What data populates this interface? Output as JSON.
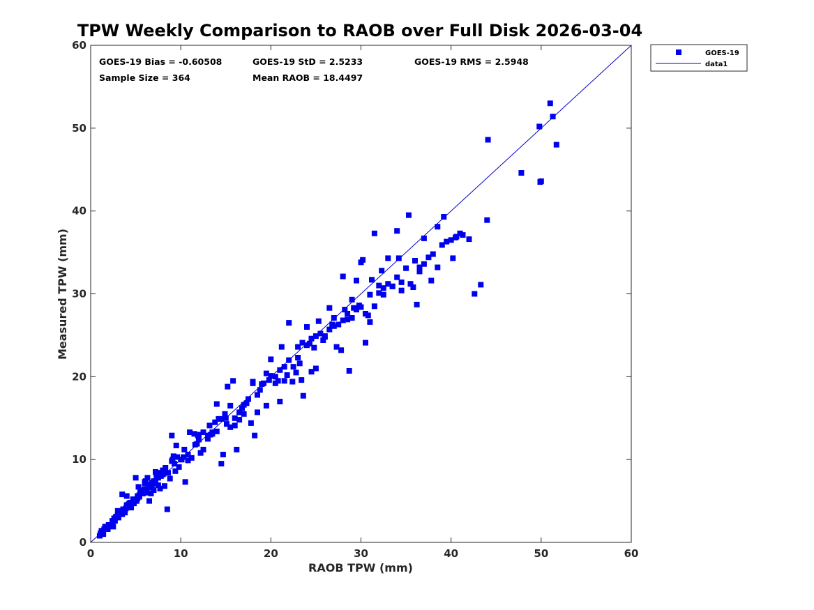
{
  "chart_data": {
    "type": "scatter",
    "title": "TPW Weekly Comparison to RAOB over Full Disk 2026-03-04",
    "xlabel": "RAOB TPW (mm)",
    "ylabel": "Measured TPW (mm)",
    "xlim": [
      0,
      60
    ],
    "ylim": [
      0,
      60
    ],
    "xticks": [
      0,
      10,
      20,
      30,
      40,
      50,
      60
    ],
    "yticks": [
      0,
      10,
      20,
      30,
      40,
      50,
      60
    ],
    "grid": false,
    "legend_position": "outside-top-right",
    "colors": {
      "marker": "#0000ee",
      "line": "#0000cc"
    },
    "stats": {
      "bias": "GOES-19 Bias = -0.60508",
      "std": "GOES-19 StD = 2.5233",
      "rms": "GOES-19 RMS = 2.5948",
      "sample": "Sample Size = 364",
      "mean": "Mean RAOB = 18.4497"
    },
    "series": [
      {
        "name": "GOES-19",
        "kind": "scatter",
        "marker": "square",
        "x": [
          1.0,
          1.1,
          1.2,
          1.3,
          1.4,
          1.5,
          1.6,
          1.8,
          2.0,
          2.2,
          2.4,
          2.6,
          2.8,
          3.0,
          3.2,
          3.4,
          3.6,
          3.8,
          4.0,
          4.2,
          4.4,
          4.6,
          4.8,
          5.0,
          5.2,
          5.4,
          5.6,
          5.8,
          6.0,
          6.2,
          6.4,
          6.6,
          6.8,
          7.0,
          7.2,
          7.5,
          7.8,
          8.0,
          8.3,
          8.6,
          9.0,
          9.3,
          9.6,
          10.0,
          10.4,
          10.8,
          11.2,
          11.6,
          12.0,
          12.5,
          13.0,
          13.5,
          14.0,
          14.5,
          15.0,
          15.5,
          16.0,
          16.5,
          17.0,
          17.5,
          18.0,
          18.5,
          19.0,
          19.5,
          20.0,
          20.5,
          21.0,
          21.5,
          22.0,
          22.5,
          23.0,
          23.5,
          24.0,
          24.5,
          25.0,
          25.5,
          26.0,
          26.5,
          27.0,
          27.5,
          28.0,
          28.5,
          29.0,
          29.5,
          30.0,
          30.5,
          31.0,
          31.5,
          32.0,
          32.5,
          33.0,
          33.5,
          34.0,
          34.5,
          35.0,
          35.5,
          36.0,
          36.5,
          37.0,
          37.5,
          38.0,
          38.5,
          39.0,
          39.5,
          40.0,
          40.6,
          41.3,
          42.0,
          43.3,
          44.0,
          47.8,
          49.8,
          51.0,
          51.3,
          51.7,
          3.5,
          4.0,
          6.5,
          8.5,
          9.0,
          11.8,
          13.5,
          14.5,
          15.2,
          18.2,
          19.0,
          21.0,
          23.6,
          27.3,
          28.7,
          30.5,
          31.5,
          34.0,
          35.3,
          36.2,
          39.2,
          42.6,
          44.1,
          49.9,
          50.0,
          5.0,
          6.0,
          7.2,
          10.5,
          12.0,
          14.7,
          17.0,
          20.0,
          22.0,
          24.5,
          26.0,
          28.0,
          29.0,
          30.0,
          32.5,
          33.0,
          37.0,
          38.5,
          40.5,
          41.0,
          2.5,
          3.0,
          4.5,
          5.5,
          6.0,
          8.0,
          9.5,
          11.0,
          13.0,
          16.0,
          17.8,
          19.5,
          21.5,
          23.0,
          25.0,
          27.0,
          29.5,
          31.0,
          33.5,
          36.5,
          3.8,
          4.3,
          5.2,
          6.8,
          7.5,
          9.2,
          10.8,
          12.5,
          14.0,
          15.5,
          16.5,
          18.8,
          20.5,
          22.8,
          24.0,
          26.5,
          28.2,
          30.2,
          32.0,
          34.5,
          1.2,
          1.6,
          2.0,
          2.4,
          2.8,
          3.3,
          3.9,
          4.4,
          5.1,
          5.7,
          6.3,
          7.0,
          7.7,
          8.8,
          9.8,
          11.5,
          13.2,
          15.8,
          18.5,
          20.8,
          3.0,
          3.5,
          4.0,
          4.8,
          5.3,
          6.1,
          6.9,
          7.4,
          8.2,
          9.4,
          10.1,
          12.2,
          13.8,
          14.9,
          16.2,
          17.3,
          19.2,
          21.2,
          22.4,
          23.4,
          24.8,
          25.8,
          27.8,
          29.2,
          30.8,
          32.3,
          34.2,
          35.8,
          37.8,
          40.2,
          1.4,
          1.9,
          2.3,
          2.7,
          3.1,
          3.6,
          4.1,
          4.7,
          5.4,
          6.2,
          6.7,
          7.3,
          8.1,
          9.1,
          10.3,
          11.9,
          13.3,
          14.2,
          15.1,
          16.8,
          18.0,
          19.8,
          21.8,
          23.2,
          24.3,
          25.3,
          26.8,
          28.5,
          29.8,
          31.2
        ],
        "y": [
          0.8,
          1.1,
          1.0,
          1.4,
          1.2,
          1.6,
          1.8,
          1.7,
          2.1,
          2.0,
          2.6,
          2.9,
          3.0,
          3.2,
          3.6,
          3.8,
          4.0,
          3.9,
          4.4,
          4.6,
          4.8,
          4.7,
          5.2,
          5.0,
          5.6,
          5.5,
          6.2,
          5.9,
          6.4,
          6.0,
          6.8,
          7.0,
          7.2,
          7.4,
          7.3,
          7.8,
          8.0,
          8.2,
          9.0,
          8.4,
          9.8,
          9.5,
          10.3,
          10.0,
          11.2,
          10.6,
          10.2,
          11.8,
          12.4,
          11.2,
          12.9,
          13.3,
          13.4,
          14.9,
          15.0,
          16.5,
          14.1,
          14.8,
          16.6,
          17.3,
          19.2,
          17.8,
          19.1,
          20.4,
          20.1,
          19.2,
          20.8,
          21.2,
          22.0,
          21.2,
          23.6,
          24.1,
          23.8,
          24.6,
          24.9,
          25.2,
          24.8,
          25.7,
          26.1,
          26.3,
          26.8,
          27.6,
          27.1,
          28.1,
          28.4,
          27.6,
          29.9,
          28.5,
          30.1,
          30.7,
          31.2,
          30.9,
          32.0,
          30.4,
          33.1,
          31.2,
          34.0,
          32.7,
          33.6,
          34.4,
          34.8,
          33.2,
          35.9,
          36.3,
          36.5,
          36.9,
          37.1,
          36.6,
          31.1,
          38.9,
          44.6,
          50.2,
          53.0,
          51.4,
          48.0,
          5.8,
          5.6,
          5.0,
          4.0,
          12.9,
          11.9,
          13.1,
          9.5,
          18.8,
          12.9,
          19.1,
          17.0,
          17.7,
          23.6,
          20.7,
          24.1,
          37.3,
          37.6,
          39.5,
          28.7,
          39.3,
          30.0,
          48.6,
          43.5,
          43.6,
          7.8,
          7.3,
          8.5,
          7.3,
          13.0,
          10.6,
          15.5,
          22.1,
          26.5,
          20.6,
          24.9,
          32.1,
          29.3,
          33.8,
          29.9,
          34.3,
          36.7,
          38.1,
          36.8,
          37.3,
          1.9,
          3.3,
          4.2,
          6.0,
          7.1,
          8.7,
          11.7,
          13.3,
          12.5,
          15.0,
          14.4,
          16.5,
          19.5,
          22.3,
          21.0,
          27.1,
          31.6,
          26.6,
          30.9,
          33.2,
          3.6,
          4.7,
          5.3,
          6.6,
          6.9,
          10.4,
          9.9,
          13.3,
          16.7,
          13.9,
          15.7,
          18.4,
          20.0,
          20.5,
          26.0,
          28.3,
          28.1,
          34.1,
          31.0,
          31.4,
          1.4,
          1.9,
          2.0,
          2.5,
          3.1,
          3.4,
          4.1,
          4.5,
          5.0,
          6.3,
          7.8,
          6.3,
          6.5,
          7.7,
          9.1,
          13.1,
          14.1,
          19.5,
          15.7,
          19.5,
          3.8,
          3.4,
          4.5,
          4.7,
          6.7,
          7.4,
          7.1,
          8.4,
          6.8,
          8.6,
          10.0,
          10.8,
          14.5,
          15.5,
          11.2,
          16.8,
          19.2,
          23.6,
          19.4,
          19.6,
          23.5,
          24.4,
          23.2,
          28.3,
          27.4,
          32.8,
          34.3,
          30.8,
          31.6,
          34.3,
          1.0,
          1.6,
          2.1,
          2.6,
          3.0,
          3.6,
          4.3,
          5.2,
          5.7,
          6.4,
          5.9,
          8.0,
          8.3,
          10.0,
          10.3,
          12.9,
          13.0,
          14.9,
          14.3,
          16.2,
          19.4,
          19.6,
          20.2,
          21.6,
          24.0,
          26.7,
          26.3,
          26.9,
          28.6,
          31.7
        ]
      },
      {
        "name": "data1",
        "kind": "line",
        "x": [
          0,
          60
        ],
        "y": [
          0,
          60
        ]
      }
    ]
  }
}
